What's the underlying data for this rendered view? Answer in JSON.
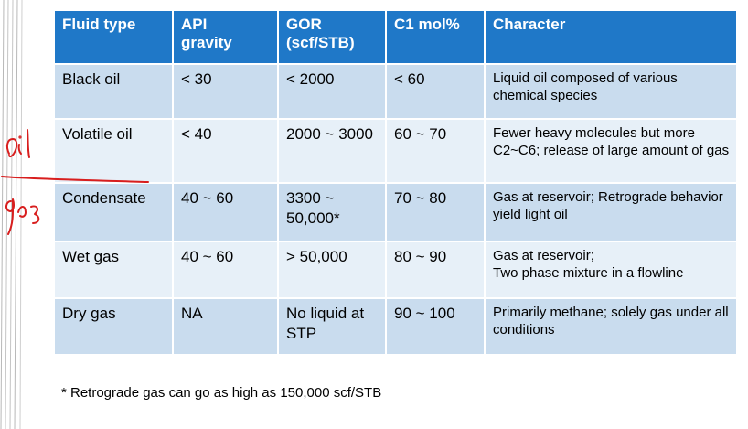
{
  "table": {
    "headers": [
      {
        "line1": "Fluid type",
        "line2": ""
      },
      {
        "line1": "API",
        "line2": "gravity"
      },
      {
        "line1": "GOR",
        "line2": "(scf/STB)"
      },
      {
        "line1": "C1 mol%",
        "line2": ""
      },
      {
        "line1": "Character",
        "line2": ""
      }
    ],
    "rows": [
      {
        "fluid_type": "Black oil",
        "api": "< 30",
        "gor": "< 2000",
        "c1": "< 60",
        "character": "Liquid oil composed of various chemical species"
      },
      {
        "fluid_type": "Volatile oil",
        "api": "< 40",
        "gor": "2000 ~ 3000",
        "c1": "60 ~ 70",
        "character": "Fewer heavy molecules but more C2~C6; release of large amount of gas"
      },
      {
        "fluid_type": "Condensate",
        "api": "40 ~ 60",
        "gor": "3300 ~ 50,000*",
        "c1": "70 ~ 80",
        "character": "Gas at reservoir; Retrograde behavior yield light oil"
      },
      {
        "fluid_type": "Wet gas",
        "api": "40 ~ 60",
        "gor": "> 50,000",
        "c1": "80 ~ 90",
        "character_line1": "Gas at reservoir;",
        "character_line2": "Two phase mixture in a flowline"
      },
      {
        "fluid_type": "Dry gas",
        "api": "NA",
        "gor": "No liquid at STP",
        "c1": "90 ~ 100",
        "character": "Primarily methane; solely gas under all conditions"
      }
    ]
  },
  "footnote": "* Retrograde gas can go as high as 150,000 scf/STB",
  "colors": {
    "header": "#1f78c8",
    "row_dark": "#c9dcee",
    "row_light": "#e7f0f8",
    "ink": "#d81e1e"
  },
  "annotations": [
    "red handwritten oil mark",
    "red handwritten gas mark",
    "red divider stroke"
  ]
}
